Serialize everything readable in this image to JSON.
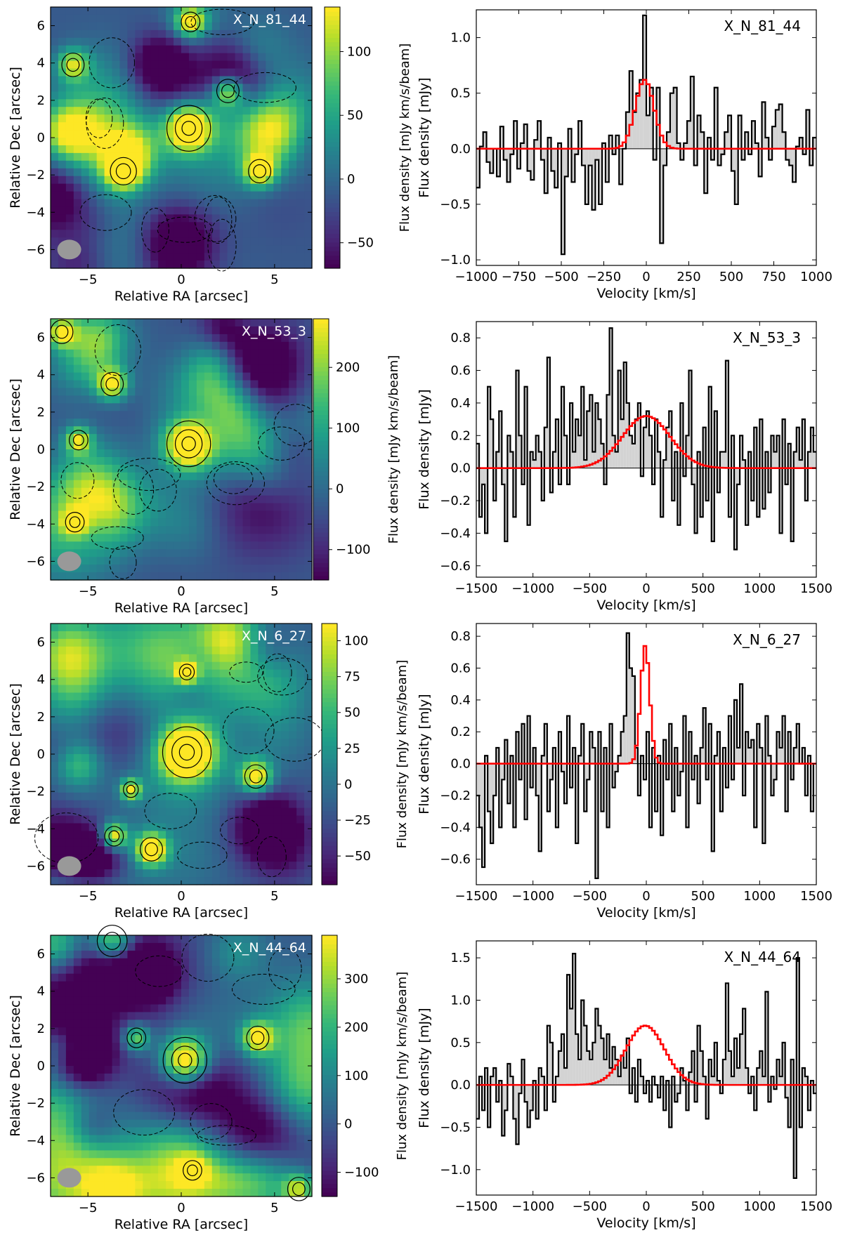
{
  "figure": {
    "colormap": "viridis",
    "beam_color": "#999999",
    "model_color": "#ff0000",
    "baseline_color": "#b00000",
    "spectrum_fill": "#d3d3d3"
  },
  "chart_data": [
    {
      "type": "heatmap",
      "name": "X_N_81_44",
      "title": "X_N_81_44",
      "xlabel": "Relative RA [arcsec]",
      "ylabel": "Relative Dec [arcsec]",
      "xlim": [
        -7,
        7
      ],
      "ylim": [
        -7,
        7
      ],
      "xticks": [
        -5,
        0,
        5
      ],
      "yticks": [
        -6,
        -4,
        -2,
        0,
        2,
        4,
        6
      ],
      "colorbar": {
        "label": "Flux density [mJy km/s/beam]",
        "range": [
          -70,
          135
        ],
        "ticks": [
          -50,
          0,
          50,
          100
        ]
      },
      "sources": [
        {
          "x": 0.4,
          "y": 0.5,
          "peak": 135,
          "size": 0.9
        },
        {
          "x": -3.1,
          "y": -1.8,
          "peak": 80,
          "size": 0.7
        },
        {
          "x": 4.2,
          "y": -1.8,
          "peak": 75,
          "size": 0.6
        },
        {
          "x": 2.5,
          "y": 2.5,
          "peak": 70,
          "size": 0.6
        },
        {
          "x": -5.8,
          "y": 3.9,
          "peak": 55,
          "size": 0.6
        },
        {
          "x": 0.5,
          "y": 6.2,
          "peak": 50,
          "size": 0.5
        }
      ]
    },
    {
      "type": "step",
      "name": "X_N_81_44",
      "title": "X_N_81_44",
      "xlabel": "Velocity [km/s]",
      "ylabel": "Flux density [mJy]",
      "xlim": [
        -1000,
        1000
      ],
      "ylim": [
        -1.05,
        1.25
      ],
      "xticks": [
        -1000,
        -750,
        -500,
        -250,
        0,
        250,
        500,
        750,
        1000
      ],
      "yticks": [
        -1.0,
        -0.5,
        0.0,
        0.5,
        1.0
      ],
      "bin_width": 20,
      "values": [
        -0.35,
        0.02,
        0.15,
        -0.12,
        -0.22,
        0.0,
        -0.25,
        0.2,
        -0.1,
        -0.3,
        -0.05,
        0.25,
        -0.18,
        0.05,
        0.22,
        -0.2,
        -0.28,
        0.08,
        0.25,
        -0.1,
        -0.4,
        0.1,
        -0.2,
        -0.35,
        0.05,
        -0.95,
        -0.25,
        0.18,
        -0.3,
        -0.05,
        0.25,
        -0.15,
        -0.5,
        -0.15,
        -0.55,
        -0.1,
        -0.5,
        0.05,
        -0.3,
        0.12,
        -0.05,
        0.12,
        -0.32,
        0.0,
        0.33,
        0.7,
        0.33,
        0.5,
        0.62,
        1.2,
        0.3,
        0.55,
        -0.1,
        0.55,
        -0.85,
        -0.15,
        0.15,
        0.5,
        0.55,
        0.05,
        -0.1,
        0.05,
        0.25,
        0.65,
        -0.15,
        0.3,
        0.15,
        -0.4,
        0.1,
        -0.1,
        0.55,
        -0.15,
        -0.05,
        0.15,
        0.3,
        -0.2,
        -0.5,
        0.3,
        -0.1,
        0.15,
        -0.05,
        0.25,
        0.05,
        -0.25,
        0.42,
        0.1,
        -0.1,
        0.2,
        0.35,
        0.4,
        0.15,
        -0.1,
        -0.15,
        -0.3,
        0.02,
        0.1,
        -0.05,
        0.35,
        -0.15,
        0.1
      ],
      "model": {
        "amp": 0.62,
        "center": -10,
        "sigma": 55
      }
    },
    {
      "type": "heatmap",
      "name": "X_N_53_3",
      "title": "X_N_53_3",
      "xlabel": "Relative RA [arcsec]",
      "ylabel": "Relative Dec [arcsec]",
      "xlim": [
        -7,
        7
      ],
      "ylim": [
        -7,
        7
      ],
      "xticks": [
        -5,
        0,
        5
      ],
      "yticks": [
        -6,
        -4,
        -2,
        0,
        2,
        4,
        6
      ],
      "colorbar": {
        "label": "Flux density [mJy km/s/beam]",
        "range": [
          -150,
          280
        ],
        "ticks": [
          -100,
          0,
          100,
          200
        ]
      },
      "sources": [
        {
          "x": 0.4,
          "y": 0.3,
          "peak": 280,
          "size": 0.9
        },
        {
          "x": -3.7,
          "y": 3.5,
          "peak": 160,
          "size": 0.6
        },
        {
          "x": -5.5,
          "y": 0.5,
          "peak": 120,
          "size": 0.5
        },
        {
          "x": -6.4,
          "y": 6.3,
          "peak": 130,
          "size": 0.6
        },
        {
          "x": -5.7,
          "y": -3.9,
          "peak": 90,
          "size": 0.5
        }
      ]
    },
    {
      "type": "step",
      "name": "X_N_53_3",
      "title": "X_N_53_3",
      "xlabel": "Velocity [km/s]",
      "ylabel": "Flux density [mJy]",
      "xlim": [
        -1500,
        1500
      ],
      "ylim": [
        -0.67,
        0.9
      ],
      "xticks": [
        -1500,
        -1000,
        -500,
        0,
        500,
        1000,
        1500
      ],
      "yticks": [
        -0.6,
        -0.4,
        -0.2,
        0.0,
        0.2,
        0.4,
        0.6,
        0.8
      ],
      "bin_width": 25,
      "values": [
        0.15,
        -0.3,
        -0.1,
        -0.4,
        0.5,
        0.3,
        -0.2,
        0.1,
        0.35,
        -0.1,
        -0.45,
        0.2,
        0.1,
        -0.3,
        0.6,
        0.2,
        -0.1,
        0.5,
        -0.35,
        0.1,
        0.05,
        0.2,
        0.1,
        -0.2,
        0.25,
        0.68,
        -0.15,
        0.1,
        0.3,
        -0.1,
        0.5,
        0.2,
        -0.1,
        0.4,
        0.1,
        0.3,
        0.2,
        0.5,
        0.05,
        0.35,
        0.45,
        0.1,
        0.4,
        0.3,
        0.15,
        -0.1,
        0.45,
        0.86,
        0.2,
        0.1,
        0.6,
        0.3,
        0.65,
        0.4,
        0.2,
        0.15,
        0.3,
        0.4,
        -0.05,
        0.25,
        0.35,
        0.2,
        -0.1,
        0.3,
        0.1,
        -0.3,
        0.05,
        0.25,
        0.35,
        -0.2,
        0.1,
        -0.35,
        0.4,
        -0.05,
        0.2,
        0.6,
        -0.1,
        -0.4,
        0.1,
        -0.3,
        0.25,
        -0.2,
        0.5,
        -0.45,
        0.35,
        -0.15,
        0.1,
        0.1,
        0.66,
        -0.3,
        0.2,
        -0.5,
        -0.1,
        0.2,
        0.05,
        -0.35,
        0.1,
        -0.2,
        0.25,
        -0.3,
        0.3,
        -0.25,
        0.1,
        -0.15,
        0.2,
        0.1,
        0.2,
        -0.4,
        0.3,
        -0.1,
        0.15,
        -0.45,
        0.1,
        0.25,
        0.05,
        0.3,
        -0.2,
        0.1,
        0.25,
        0.1
      ],
      "model": {
        "amp": 0.32,
        "center": 0,
        "sigma": 210
      }
    },
    {
      "type": "heatmap",
      "name": "X_N_6_27",
      "title": "X_N_6_27",
      "xlabel": "Relative RA [arcsec]",
      "ylabel": "Relative Dec [arcsec]",
      "xlim": [
        -7,
        7
      ],
      "ylim": [
        -7,
        7
      ],
      "xticks": [
        -5,
        0,
        5
      ],
      "yticks": [
        -6,
        -4,
        -2,
        0,
        2,
        4,
        6
      ],
      "colorbar": {
        "label": "Flux density [mJy km/s/beam]",
        "range": [
          -70,
          112
        ],
        "ticks": [
          -50,
          -25,
          0,
          25,
          50,
          75,
          100
        ]
      },
      "sources": [
        {
          "x": 0.3,
          "y": 0.1,
          "peak": 112,
          "size": 1.0
        },
        {
          "x": -1.6,
          "y": -5.1,
          "peak": 95,
          "size": 0.6
        },
        {
          "x": -3.6,
          "y": -4.4,
          "peak": 75,
          "size": 0.5
        },
        {
          "x": 4.0,
          "y": -1.2,
          "peak": 70,
          "size": 0.6
        },
        {
          "x": -2.7,
          "y": -1.9,
          "peak": 60,
          "size": 0.4
        },
        {
          "x": 0.3,
          "y": 4.4,
          "peak": 55,
          "size": 0.4
        }
      ]
    },
    {
      "type": "step",
      "name": "X_N_6_27",
      "title": "X_N_6_27",
      "xlabel": "Velocity [km/s]",
      "ylabel": "Flux density [mJy]",
      "xlim": [
        -1500,
        1500
      ],
      "ylim": [
        -0.76,
        0.88
      ],
      "xticks": [
        -1500,
        -1000,
        -500,
        0,
        500,
        1000,
        1500
      ],
      "yticks": [
        -0.6,
        -0.4,
        -0.2,
        0.0,
        0.2,
        0.4,
        0.6,
        0.8
      ],
      "bin_width": 25,
      "values": [
        -0.2,
        -0.4,
        -0.65,
        0.05,
        -0.3,
        -0.5,
        -0.2,
        0.1,
        -0.4,
        -0.1,
        0.15,
        -0.25,
        0.05,
        -0.4,
        0.2,
        -0.1,
        0.25,
        -0.35,
        0.3,
        -0.15,
        0.1,
        -0.2,
        -0.55,
        0.05,
        0.25,
        -0.3,
        -0.1,
        0.1,
        -0.4,
        0.2,
        -0.05,
        -0.25,
        0.3,
        -0.15,
        0.1,
        -0.5,
        0.05,
        0.25,
        -0.3,
        -0.1,
        0.2,
        0.1,
        -0.72,
        0.2,
        -0.3,
        0.1,
        -0.4,
        0.25,
        -0.15,
        -0.05,
        0.05,
        0.2,
        0.3,
        0.82,
        0.6,
        0.55,
        0.1,
        -0.2,
        0.05,
        -0.1,
        0.2,
        -0.4,
        0.1,
        -0.3,
        0.05,
        -0.45,
        0.15,
        -0.1,
        0.25,
        -0.3,
        0.1,
        -0.2,
        -0.05,
        0.3,
        -0.4,
        0.2,
        -0.1,
        0.05,
        -0.25,
        0.1,
        0.35,
        -0.1,
        0.25,
        -0.55,
        0.05,
        0.2,
        -0.3,
        0.1,
        -0.15,
        0.3,
        -0.1,
        0.4,
        0.1,
        0.5,
        -0.2,
        0.2,
        0.1,
        0.15,
        -0.4,
        0.25,
        0.1,
        -0.5,
        0.3,
        0.05,
        -0.2,
        -0.1,
        0.2,
        0.1,
        0.3,
        -0.3,
        0.2,
        -0.1,
        0.1,
        0.25,
        0.0,
        0.1,
        -0.2,
        0.05,
        -0.3,
        0.0
      ],
      "model": {
        "amp": 0.74,
        "center": -10,
        "sigma": 40
      }
    },
    {
      "type": "heatmap",
      "name": "X_N_44_64",
      "title": "X_N_44_64",
      "xlabel": "Relative RA [arcsec]",
      "ylabel": "Relative Dec [arcsec]",
      "xlim": [
        -7,
        7
      ],
      "ylim": [
        -7,
        7
      ],
      "xticks": [
        -5,
        0,
        5
      ],
      "yticks": [
        -6,
        -4,
        -2,
        0,
        2,
        4,
        6
      ],
      "colorbar": {
        "label": "Flux density [mJy km/s/beam]",
        "range": [
          -150,
          390
        ],
        "ticks": [
          -100,
          0,
          100,
          200,
          300
        ]
      },
      "sources": [
        {
          "x": 0.2,
          "y": 0.3,
          "peak": 390,
          "size": 0.9
        },
        {
          "x": 4.1,
          "y": 1.5,
          "peak": 230,
          "size": 0.6
        },
        {
          "x": -3.7,
          "y": 6.7,
          "peak": 200,
          "size": 0.8
        },
        {
          "x": -2.4,
          "y": 1.5,
          "peak": 150,
          "size": 0.5
        },
        {
          "x": 6.3,
          "y": -6.6,
          "peak": 160,
          "size": 0.6
        },
        {
          "x": 0.6,
          "y": -5.6,
          "peak": 110,
          "size": 0.5
        }
      ]
    },
    {
      "type": "step",
      "name": "X_N_44_64",
      "title": "X_N_44_64",
      "xlabel": "Velocity [km/s]",
      "ylabel": "Flux density [mJy]",
      "xlim": [
        -1500,
        1500
      ],
      "ylim": [
        -1.3,
        1.7
      ],
      "xticks": [
        -1500,
        -1000,
        -500,
        0,
        500,
        1000,
        1500
      ],
      "yticks": [
        -1.0,
        -0.5,
        0.0,
        0.5,
        1.0,
        1.5
      ],
      "bin_width": 25,
      "values": [
        -0.4,
        0.1,
        -0.3,
        0.2,
        -0.5,
        0.1,
        0.2,
        -0.2,
        0.05,
        -0.6,
        -0.3,
        0.25,
        0.1,
        -0.4,
        -0.7,
        -0.1,
        0.3,
        -0.2,
        -0.5,
        -0.3,
        0.05,
        -0.4,
        0.2,
        0.1,
        -0.3,
        0.7,
        0.5,
        -0.2,
        0.1,
        0.4,
        0.6,
        0.2,
        1.3,
        0.9,
        1.55,
        0.6,
        0.3,
        1.0,
        0.7,
        0.4,
        0.3,
        0.5,
        0.9,
        0.7,
        0.55,
        0.3,
        0.6,
        0.2,
        0.45,
        0.3,
        0.1,
        0.35,
        0.2,
        0.55,
        -0.1,
        0.2,
        -0.2,
        0.3,
        0.1,
        -0.1,
        0.05,
        -0.2,
        0.1,
        0.0,
        -0.15,
        0.1,
        -0.3,
        0.05,
        -0.5,
        0.1,
        -0.2,
        -0.1,
        0.2,
        0.05,
        -0.3,
        0.15,
        0.4,
        -0.2,
        0.7,
        0.4,
        0.1,
        -0.4,
        0.3,
        0.1,
        0.5,
        0.05,
        -0.1,
        0.3,
        1.2,
        0.4,
        0.1,
        0.55,
        0.2,
        0.6,
        0.9,
        0.2,
        -0.1,
        0.1,
        -0.3,
        0.2,
        0.4,
        0.1,
        1.1,
        -0.2,
        0.1,
        -0.05,
        0.3,
        0.1,
        0.5,
        -0.15,
        -0.5,
        0.3,
        -1.1,
        1.5,
        -0.5,
        0.2,
        0.1,
        -0.3,
        0.05,
        -0.1
      ],
      "model": {
        "amp": 0.7,
        "center": -10,
        "sigma": 170
      }
    }
  ]
}
